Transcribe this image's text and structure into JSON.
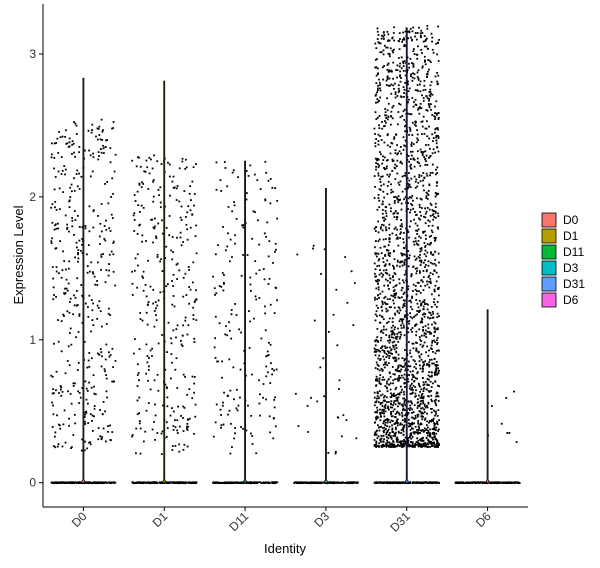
{
  "chart_data": {
    "type": "violin",
    "title": "",
    "xlabel": "Identity",
    "ylabel": "Expression Level",
    "ylim": [
      -0.17,
      3.35
    ],
    "yticks": [
      0,
      1,
      2,
      3
    ],
    "categories": [
      "D0",
      "D1",
      "D11",
      "D3",
      "D31",
      "D6"
    ],
    "series": [
      {
        "name": "D0",
        "color": "#F8766D",
        "max": 2.83,
        "n_zero": 260,
        "n_pos": 420,
        "pos_range": [
          0.22,
          2.55
        ],
        "dist": "spread"
      },
      {
        "name": "D1",
        "color": "#B79F00",
        "max": 2.81,
        "n_zero": 260,
        "n_pos": 330,
        "pos_range": [
          0.2,
          2.3
        ],
        "dist": "spread"
      },
      {
        "name": "D11",
        "color": "#00BA38",
        "max": 2.25,
        "n_zero": 260,
        "n_pos": 200,
        "pos_range": [
          0.2,
          2.25
        ],
        "dist": "spread"
      },
      {
        "name": "D3",
        "color": "#00BFC4",
        "max": 2.06,
        "n_zero": 260,
        "n_pos": 35,
        "pos_range": [
          0.2,
          1.7
        ],
        "dist": "sparse"
      },
      {
        "name": "D31",
        "color": "#619CFF",
        "max": 3.18,
        "n_zero": 260,
        "n_pos": 2300,
        "pos_range": [
          0.25,
          3.2
        ],
        "dist": "dense"
      },
      {
        "name": "D6",
        "color": "#F564E3",
        "max": 1.21,
        "n_zero": 260,
        "n_pos": 8,
        "pos_range": [
          0.24,
          0.98
        ],
        "dist": "sparse"
      }
    ],
    "grid": false,
    "legend": {
      "placement": "right",
      "entries": [
        "D0",
        "D1",
        "D11",
        "D3",
        "D31",
        "D6"
      ]
    }
  }
}
